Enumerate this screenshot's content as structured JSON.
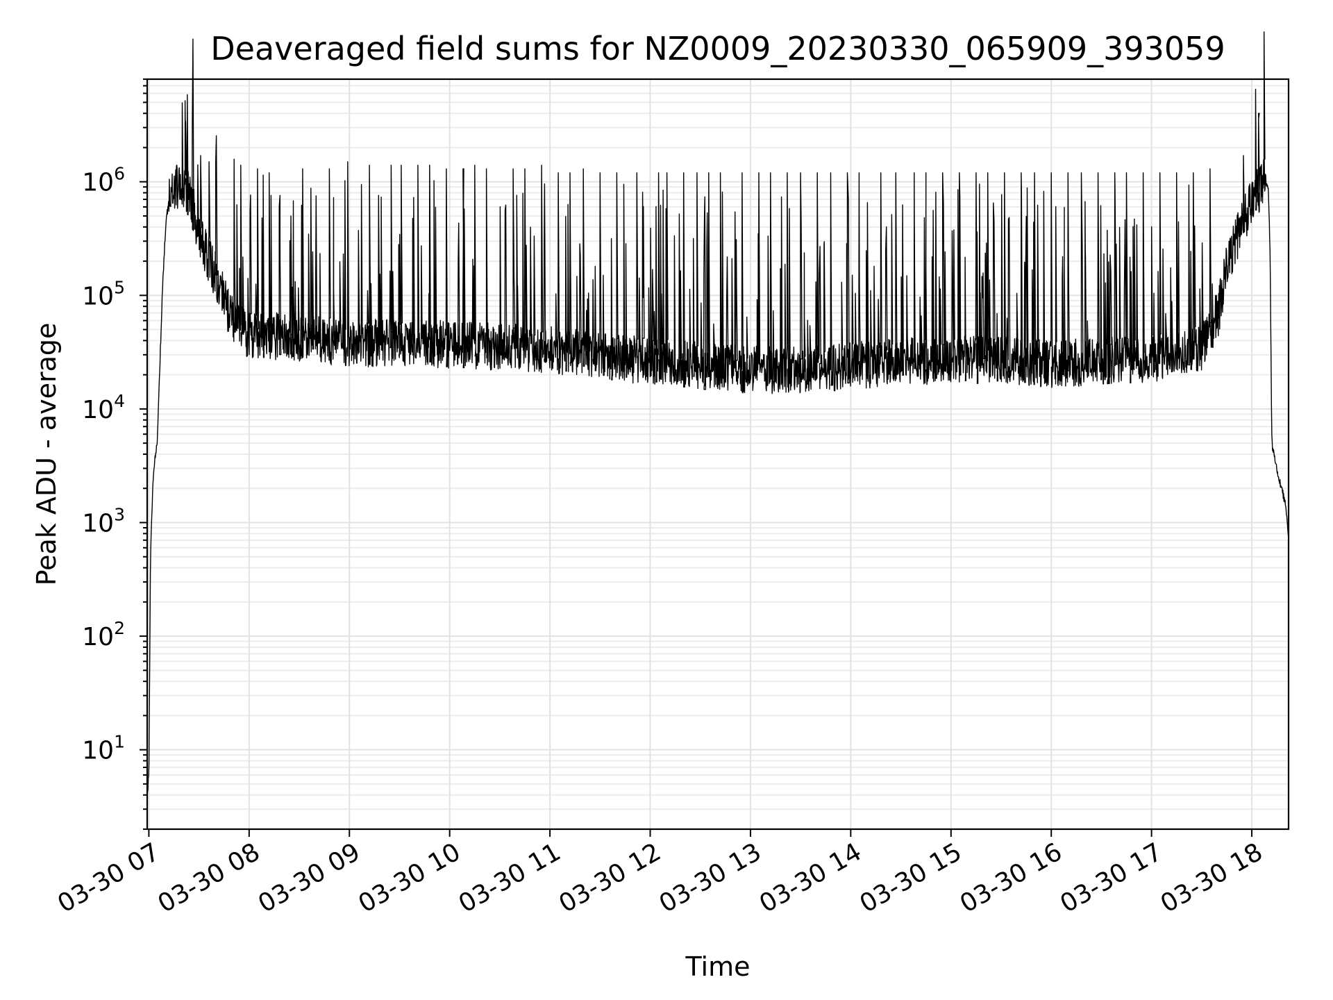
{
  "chart_data": {
    "type": "line",
    "title": "Deaveraged field sums for NZ0009_20230330_065909_393059",
    "xlabel": "Time",
    "ylabel": "Peak ADU - average",
    "yscale": "log",
    "ylim": [
      2,
      8000000
    ],
    "xlim": [
      "2023-03-30 06:59",
      "2023-03-30 18:22"
    ],
    "grid": true,
    "x_ticks": [
      "2023-03-30 07:00",
      "2023-03-30 08:00",
      "2023-03-30 09:00",
      "2023-03-30 10:00",
      "2023-03-30 11:00",
      "2023-03-30 12:00",
      "2023-03-30 13:00",
      "2023-03-30 14:00",
      "2023-03-30 15:00",
      "2023-03-30 16:00",
      "2023-03-30 17:00",
      "2023-03-30 18:00"
    ],
    "x_tick_labels": [
      "03-30 07",
      "03-30 08",
      "03-30 09",
      "03-30 10",
      "03-30 11",
      "03-30 12",
      "03-30 13",
      "03-30 14",
      "03-30 15",
      "03-30 16",
      "03-30 17",
      "03-30 18"
    ],
    "y_ticks": [
      10,
      100,
      1000,
      10000,
      100000,
      1000000
    ],
    "y_tick_labels": [
      {
        "base": "10",
        "exp": "1"
      },
      {
        "base": "10",
        "exp": "2"
      },
      {
        "base": "10",
        "exp": "3"
      },
      {
        "base": "10",
        "exp": "4"
      },
      {
        "base": "10",
        "exp": "5"
      },
      {
        "base": "10",
        "exp": "6"
      }
    ],
    "line_color": "#000000",
    "series": [
      {
        "baseline": {
          "x": [
            "2023-03-30 06:59",
            "2023-03-30 07:00",
            "2023-03-30 07:01",
            "2023-03-30 07:02",
            "2023-03-30 07:03",
            "2023-03-30 07:05",
            "2023-03-30 07:08",
            "2023-03-30 07:10",
            "2023-03-30 07:12",
            "2023-03-30 07:15",
            "2023-03-30 07:20",
            "2023-03-30 07:25",
            "2023-03-30 07:30",
            "2023-03-30 07:35",
            "2023-03-30 07:40",
            "2023-03-30 07:45",
            "2023-03-30 07:50",
            "2023-03-30 07:55",
            "2023-03-30 08:00",
            "2023-03-30 08:30",
            "2023-03-30 09:00",
            "2023-03-30 09:30",
            "2023-03-30 10:00",
            "2023-03-30 10:30",
            "2023-03-30 11:00",
            "2023-03-30 11:30",
            "2023-03-30 12:00",
            "2023-03-30 12:30",
            "2023-03-30 13:00",
            "2023-03-30 13:30",
            "2023-03-30 14:00",
            "2023-03-30 14:30",
            "2023-03-30 15:00",
            "2023-03-30 15:30",
            "2023-03-30 16:00",
            "2023-03-30 16:30",
            "2023-03-30 17:00",
            "2023-03-30 17:20",
            "2023-03-30 17:30",
            "2023-03-30 17:40",
            "2023-03-30 17:45",
            "2023-03-30 17:50",
            "2023-03-30 17:55",
            "2023-03-30 18:00",
            "2023-03-30 18:05",
            "2023-03-30 18:08",
            "2023-03-30 18:10",
            "2023-03-30 18:11",
            "2023-03-30 18:12",
            "2023-03-30 18:15",
            "2023-03-30 18:20",
            "2023-03-30 18:22"
          ],
          "y": [
            4,
            6,
            500,
            1500,
            3000,
            5000,
            100000,
            400000,
            700000,
            900000,
            1000000,
            700000,
            350000,
            220000,
            150000,
            90000,
            60000,
            50000,
            45000,
            42000,
            38000,
            38000,
            37000,
            35000,
            33000,
            30000,
            26000,
            24000,
            22000,
            22000,
            24000,
            26000,
            27000,
            27000,
            25000,
            26000,
            28000,
            30000,
            35000,
            70000,
            180000,
            300000,
            450000,
            650000,
            900000,
            1100000,
            800000,
            200000,
            5000,
            3000,
            1500,
            700
          ]
        },
        "spikes": {
          "x": [
            "2023-03-30 07:22",
            "2023-03-30 07:26",
            "2023-03-30 07:31",
            "2023-03-30 07:36",
            "2023-03-30 07:40",
            "2023-03-30 07:55",
            "2023-03-30 08:05",
            "2023-03-30 08:12",
            "2023-03-30 08:18",
            "2023-03-30 08:25",
            "2023-03-30 08:32",
            "2023-03-30 08:48",
            "2023-03-30 08:59",
            "2023-03-30 09:12",
            "2023-03-30 09:25",
            "2023-03-30 09:31",
            "2023-03-30 09:41",
            "2023-03-30 09:48",
            "2023-03-30 09:58",
            "2023-03-30 10:08",
            "2023-03-30 10:15",
            "2023-03-30 10:22",
            "2023-03-30 10:38",
            "2023-03-30 10:45",
            "2023-03-30 10:55",
            "2023-03-30 11:05",
            "2023-03-30 11:12",
            "2023-03-30 11:20",
            "2023-03-30 11:30",
            "2023-03-30 11:40",
            "2023-03-30 11:52",
            "2023-03-30 12:05",
            "2023-03-30 12:10",
            "2023-03-30 12:20",
            "2023-03-30 12:28",
            "2023-03-30 12:35",
            "2023-03-30 12:42",
            "2023-03-30 12:55",
            "2023-03-30 13:05",
            "2023-03-30 13:12",
            "2023-03-30 13:22",
            "2023-03-30 13:30",
            "2023-03-30 13:40",
            "2023-03-30 13:48",
            "2023-03-30 13:58",
            "2023-03-30 14:05",
            "2023-03-30 14:18",
            "2023-03-30 14:27",
            "2023-03-30 14:38",
            "2023-03-30 14:45",
            "2023-03-30 14:55",
            "2023-03-30 15:05",
            "2023-03-30 15:15",
            "2023-03-30 15:22",
            "2023-03-30 15:32",
            "2023-03-30 15:42",
            "2023-03-30 15:50",
            "2023-03-30 16:00",
            "2023-03-30 16:10",
            "2023-03-30 16:18",
            "2023-03-30 16:28",
            "2023-03-30 16:38",
            "2023-03-30 16:45",
            "2023-03-30 16:55",
            "2023-03-30 17:05",
            "2023-03-30 17:15",
            "2023-03-30 17:25",
            "2023-03-30 17:35",
            "2023-03-30 17:55",
            "2023-03-30 18:04"
          ],
          "y": [
            3400000,
            3300000,
            1700000,
            1500000,
            1500000,
            1400000,
            1300000,
            1200000,
            600000,
            500000,
            1300000,
            1300000,
            1500000,
            1400000,
            1400000,
            1400000,
            1400000,
            1400000,
            1300000,
            1300000,
            1400000,
            1300000,
            1300000,
            1300000,
            1400000,
            1200000,
            1200000,
            1300000,
            1200000,
            1200000,
            1200000,
            1200000,
            1200000,
            1200000,
            1200000,
            1200000,
            1200000,
            1200000,
            1200000,
            1200000,
            1200000,
            1200000,
            1200000,
            1200000,
            1200000,
            1200000,
            1200000,
            1200000,
            1200000,
            1200000,
            1200000,
            1200000,
            1200000,
            1200000,
            1200000,
            1200000,
            1200000,
            1200000,
            1200000,
            1200000,
            1200000,
            1200000,
            1200000,
            1200000,
            1200000,
            1200000,
            1200000,
            1300000,
            1700000,
            4000000
          ]
        }
      }
    ]
  }
}
